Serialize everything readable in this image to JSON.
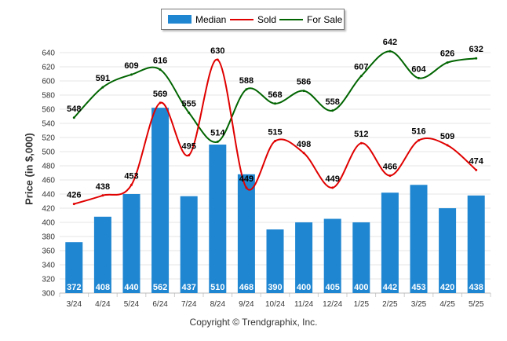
{
  "chart_data": {
    "type": "bar",
    "categories": [
      "3/24",
      "4/24",
      "5/24",
      "6/24",
      "7/24",
      "8/24",
      "9/24",
      "10/24",
      "11/24",
      "12/24",
      "1/25",
      "2/25",
      "3/25",
      "4/25",
      "5/25"
    ],
    "series": [
      {
        "name": "Median",
        "type": "bar",
        "color": "#1f86d1",
        "values": [
          372,
          408,
          440,
          562,
          437,
          510,
          468,
          390,
          400,
          405,
          400,
          442,
          453,
          420,
          438
        ]
      },
      {
        "name": "Sold",
        "type": "line",
        "color": "#e00000",
        "values": [
          426,
          438,
          453,
          569,
          495,
          630,
          449,
          515,
          498,
          449,
          512,
          466,
          516,
          509,
          474
        ]
      },
      {
        "name": "For Sale",
        "type": "line",
        "color": "#006400",
        "values": [
          548,
          591,
          609,
          616,
          555,
          514,
          588,
          568,
          586,
          558,
          607,
          642,
          604,
          626,
          632
        ]
      }
    ],
    "ylabel": "Price (in $,000)",
    "xlabel": "",
    "ylim": [
      300,
      650
    ],
    "yticks": [
      300,
      320,
      340,
      360,
      380,
      400,
      420,
      440,
      460,
      480,
      500,
      520,
      540,
      560,
      580,
      600,
      620,
      640
    ],
    "grid": true,
    "legend_position": "top-center"
  },
  "footer": "Copyright © Trendgraphix, Inc."
}
